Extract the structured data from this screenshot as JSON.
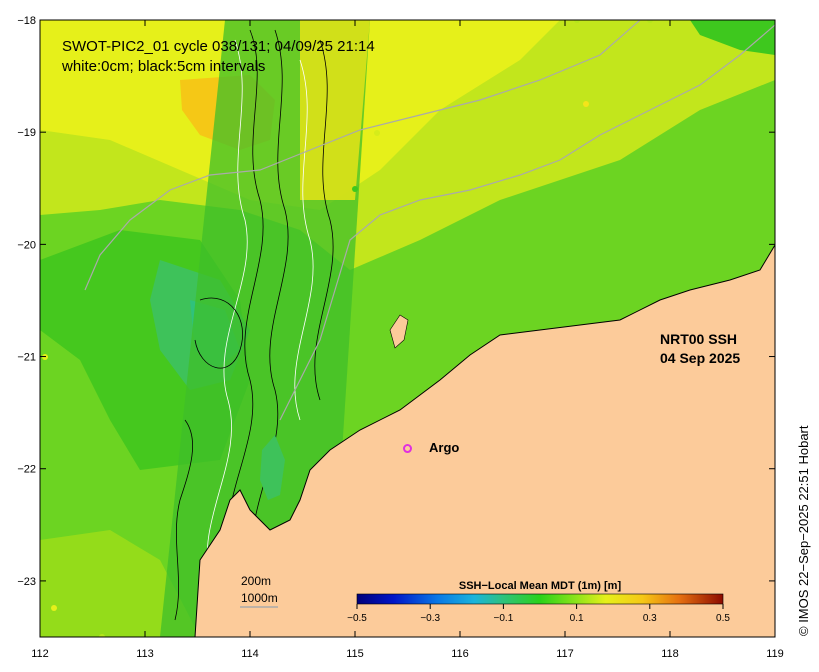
{
  "title": {
    "line1": "SWOT-PIC2_01 cycle 038/131; 04/09/25 21:14",
    "line2": "white:0cm; black:5cm intervals"
  },
  "product": {
    "line1": "NRT00 SSH",
    "line2": "04 Sep 2025"
  },
  "argo": {
    "label": "Argo",
    "lon": 115.5,
    "lat": -21.82,
    "color": "#e030e0"
  },
  "scale_legend": {
    "line1": "200m",
    "line2": "1000m"
  },
  "colorbar": {
    "title": "SSH−Local Mean MDT (1m) [m]",
    "range": [
      -0.5,
      0.5
    ],
    "ticks": [
      "−0.5",
      "−0.3",
      "−0.1",
      "0.1",
      "0.3",
      "0.5"
    ],
    "tick_values": [
      -0.5,
      -0.3,
      -0.1,
      0.1,
      0.3,
      0.5
    ]
  },
  "credit": "© IMOS 22−Sep−2025 22:51 Hobart",
  "axes": {
    "lon_range": [
      112,
      119
    ],
    "lat_range": [
      -23.5,
      -18
    ],
    "lon_ticks": [
      "112",
      "113",
      "114",
      "115",
      "116",
      "117",
      "118",
      "119"
    ],
    "lat_ticks": [
      "−18",
      "−19",
      "−20",
      "−21",
      "−22",
      "−23"
    ]
  },
  "colors": {
    "land": "#fccb9a",
    "sea_green": "#45c81e",
    "sea_yellow": "#e6f01a",
    "sea_orange": "#f5c816",
    "sea_teal": "#2fc27c"
  }
}
